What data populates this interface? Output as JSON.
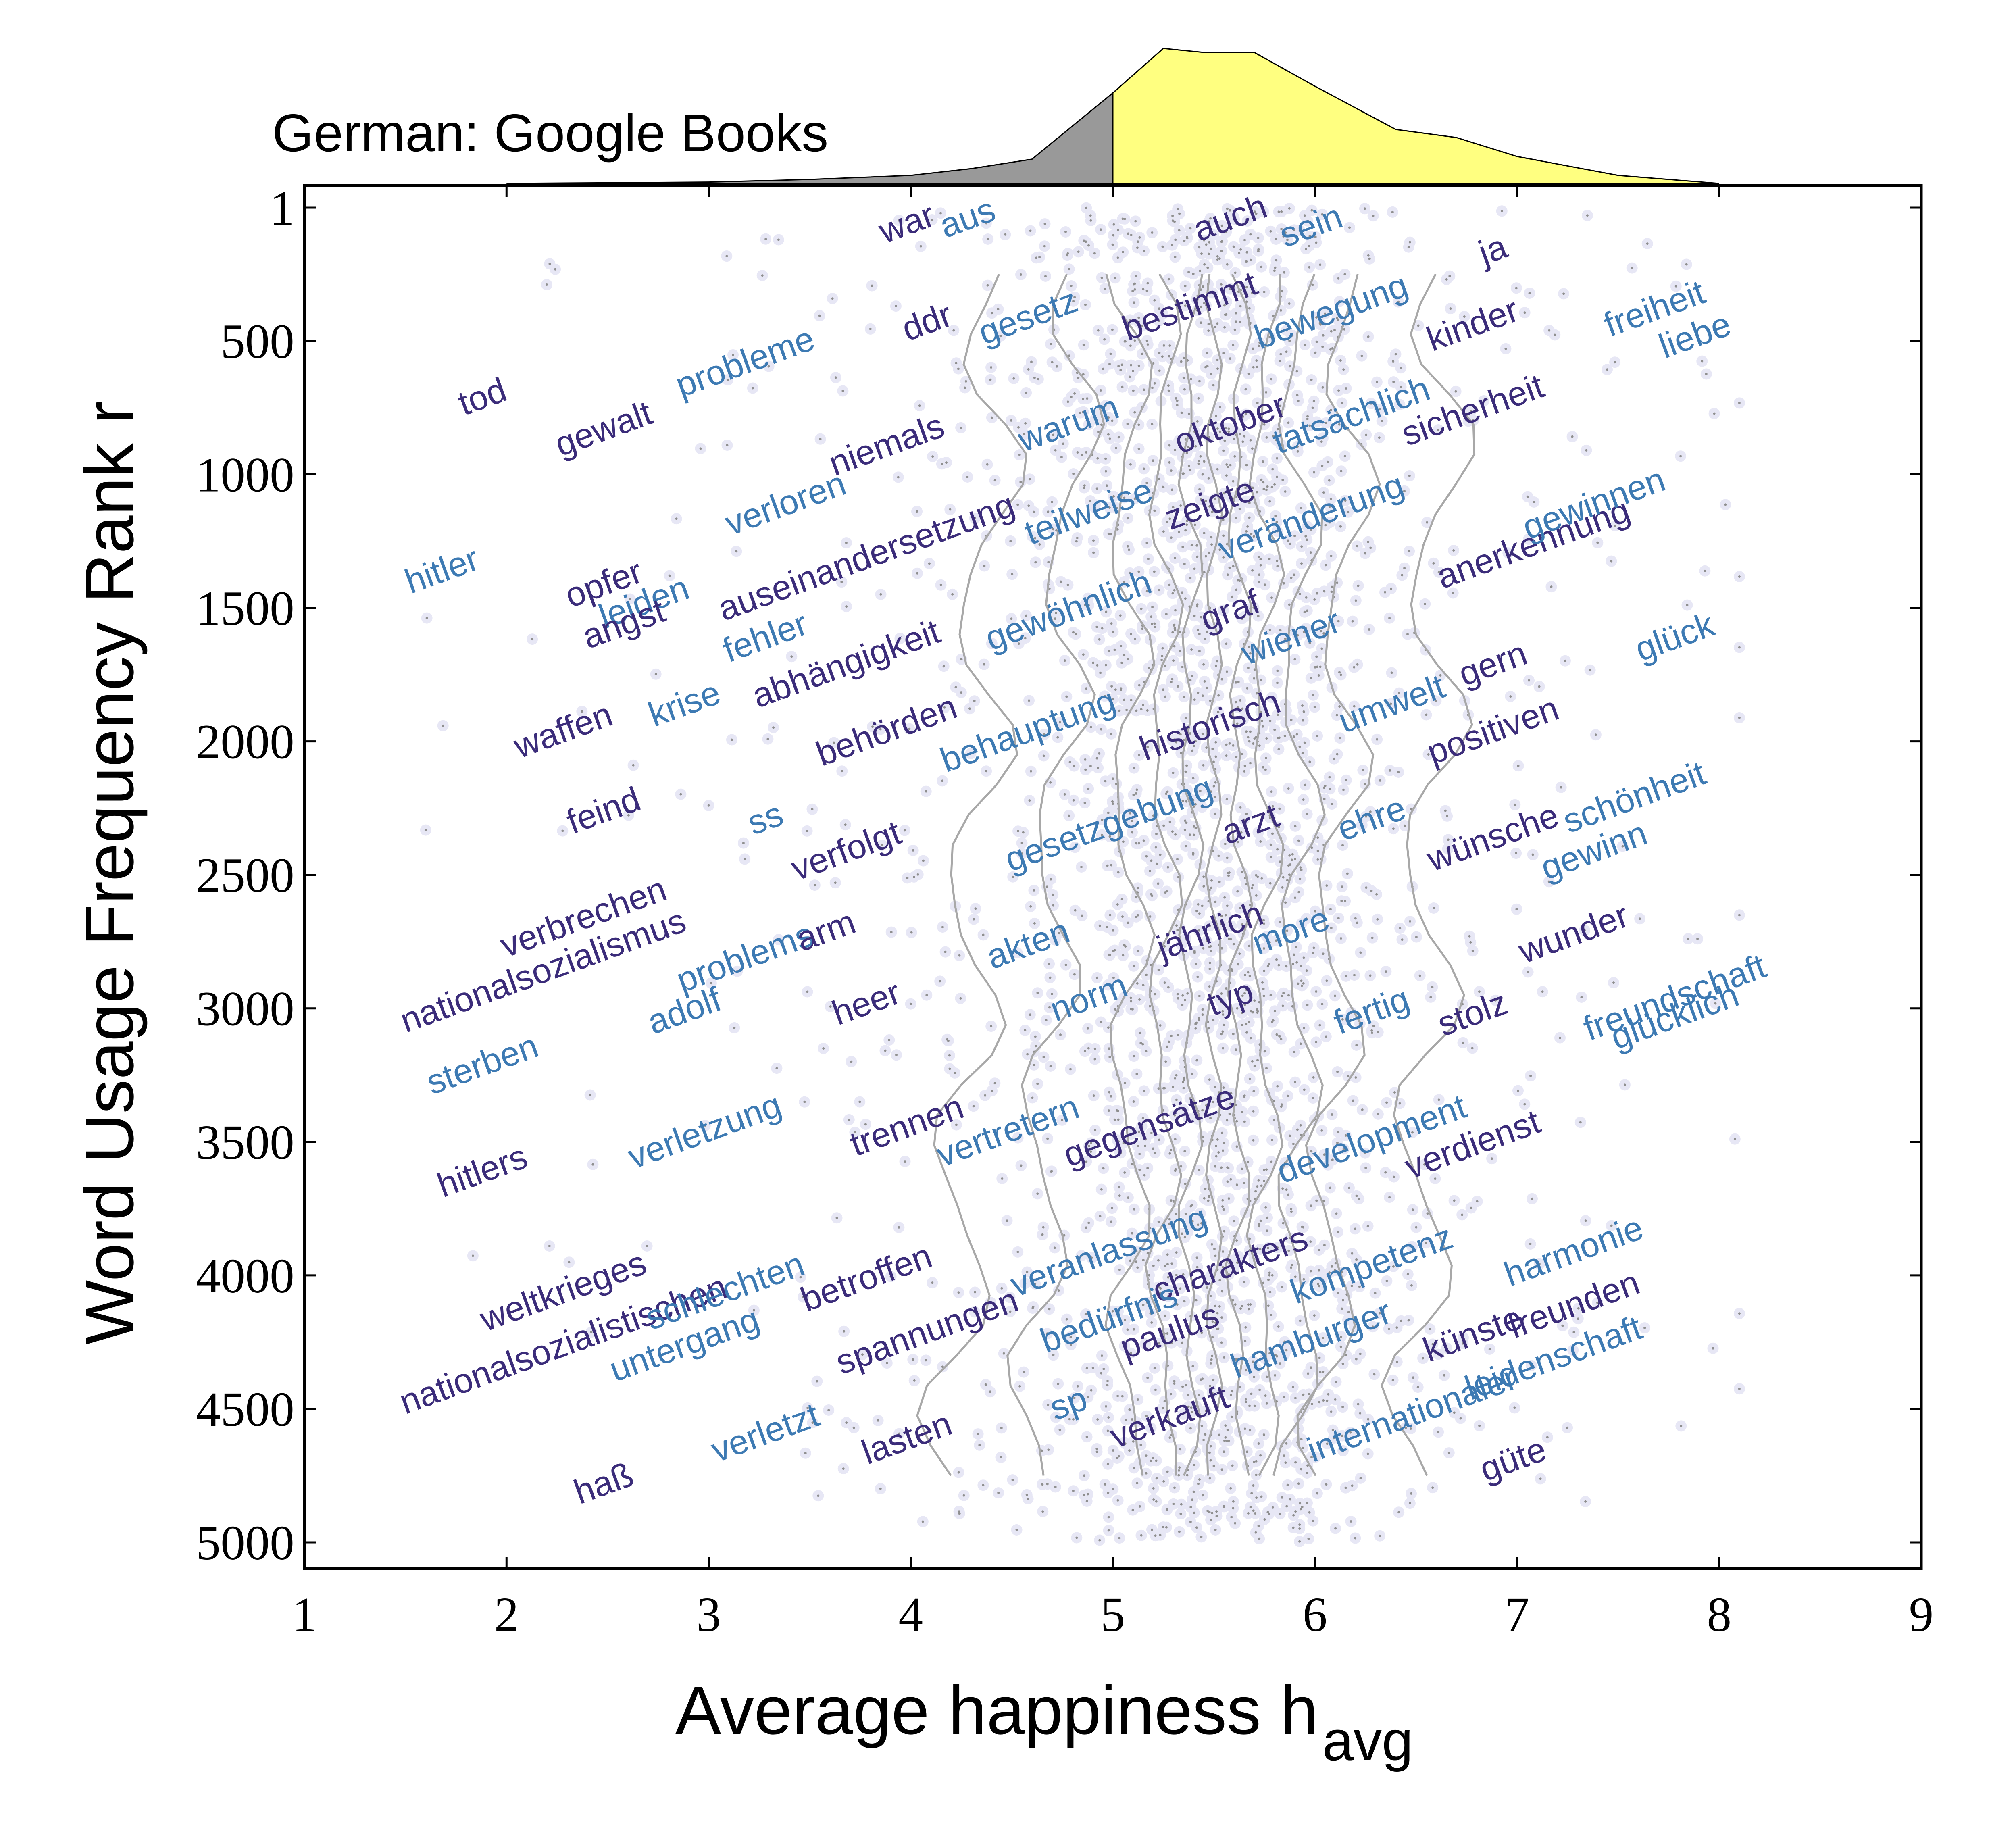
{
  "chart_data": {
    "type": "scatter",
    "title": "German: Google Books",
    "xlabel": "Average happiness h",
    "xlabel_sub": "avg",
    "ylabel": "Word Usage Frequency Rank r",
    "xlim": [
      1,
      9
    ],
    "ylim": [
      5000,
      1
    ],
    "y_axis_inverted": true,
    "xticks": [
      "1",
      "2",
      "3",
      "4",
      "5",
      "6",
      "7",
      "8",
      "9"
    ],
    "yticks": [
      "1",
      "500",
      "1000",
      "1500",
      "2000",
      "2500",
      "3000",
      "3500",
      "4000",
      "4500",
      "5000"
    ],
    "ytick_values": [
      1,
      500,
      1000,
      1500,
      2000,
      2500,
      3000,
      3500,
      4000,
      4500,
      5000
    ],
    "grid": false,
    "colors": {
      "negative_word": "#3b2c7a",
      "positive_word": "#3d7ab3",
      "point_halo": "#e7e7f5",
      "point_center": "#8f8f8f",
      "contour": "#a8a8a8",
      "hist_negative": "#999999",
      "hist_positive": "#ffff80"
    },
    "marginal_histogram": {
      "type": "area",
      "split_at": 5,
      "x": [
        2.0,
        3.0,
        3.5,
        4.0,
        4.3,
        4.6,
        5.0,
        5.25,
        5.45,
        5.7,
        6.0,
        6.4,
        6.7,
        7.0,
        7.5,
        8.0
      ],
      "density": [
        0.0,
        0.01,
        0.03,
        0.06,
        0.11,
        0.18,
        0.67,
        1.0,
        0.97,
        0.97,
        0.72,
        0.4,
        0.34,
        0.2,
        0.06,
        0.0
      ]
    },
    "words": [
      {
        "w": "tod",
        "h": 1.9,
        "r": 750,
        "pos": false
      },
      {
        "w": "gewalt",
        "h": 2.5,
        "r": 870,
        "pos": false
      },
      {
        "w": "probleme",
        "h": 3.2,
        "r": 620,
        "pos": true
      },
      {
        "w": "war",
        "h": 4.0,
        "r": 100,
        "pos": false
      },
      {
        "w": "aus",
        "h": 4.3,
        "r": 80,
        "pos": true
      },
      {
        "w": "auch",
        "h": 5.6,
        "r": 80,
        "pos": false
      },
      {
        "w": "sein",
        "h": 6.0,
        "r": 110,
        "pos": true
      },
      {
        "w": "ja",
        "h": 6.9,
        "r": 200,
        "pos": false
      },
      {
        "w": "ddr",
        "h": 4.1,
        "r": 470,
        "pos": false
      },
      {
        "w": "gesetz",
        "h": 4.6,
        "r": 450,
        "pos": true
      },
      {
        "w": "bestimmt",
        "h": 5.4,
        "r": 410,
        "pos": false
      },
      {
        "w": "bewegung",
        "h": 6.1,
        "r": 430,
        "pos": true
      },
      {
        "w": "kinder",
        "h": 6.8,
        "r": 480,
        "pos": false
      },
      {
        "w": "freiheit",
        "h": 7.7,
        "r": 420,
        "pos": true
      },
      {
        "w": "liebe",
        "h": 7.9,
        "r": 520,
        "pos": true
      },
      {
        "w": "niemals",
        "h": 3.9,
        "r": 930,
        "pos": false
      },
      {
        "w": "warum",
        "h": 4.8,
        "r": 850,
        "pos": true
      },
      {
        "w": "oktober",
        "h": 5.6,
        "r": 850,
        "pos": false
      },
      {
        "w": "tatsächlich",
        "h": 6.2,
        "r": 820,
        "pos": true
      },
      {
        "w": "sicherheit",
        "h": 6.8,
        "r": 800,
        "pos": false
      },
      {
        "w": "hitler",
        "h": 1.7,
        "r": 1400,
        "pos": true
      },
      {
        "w": "verloren",
        "h": 3.4,
        "r": 1150,
        "pos": true
      },
      {
        "w": "auseinandersetzung",
        "h": 3.8,
        "r": 1350,
        "pos": false
      },
      {
        "w": "teilweise",
        "h": 4.9,
        "r": 1180,
        "pos": true
      },
      {
        "w": "zeigte",
        "h": 5.5,
        "r": 1150,
        "pos": false
      },
      {
        "w": "veränderung",
        "h": 6.0,
        "r": 1200,
        "pos": true
      },
      {
        "w": "anerkennung",
        "h": 7.1,
        "r": 1300,
        "pos": false
      },
      {
        "w": "gewinnen",
        "h": 7.4,
        "r": 1150,
        "pos": true
      },
      {
        "w": "opfer",
        "h": 2.5,
        "r": 1450,
        "pos": false
      },
      {
        "w": "leiden",
        "h": 2.7,
        "r": 1520,
        "pos": true
      },
      {
        "w": "angst",
        "h": 2.6,
        "r": 1600,
        "pos": false
      },
      {
        "w": "fehler",
        "h": 3.3,
        "r": 1650,
        "pos": true
      },
      {
        "w": "abhängigkeit",
        "h": 3.7,
        "r": 1750,
        "pos": false
      },
      {
        "w": "gewöhnlich",
        "h": 4.8,
        "r": 1550,
        "pos": true
      },
      {
        "w": "graf",
        "h": 5.6,
        "r": 1550,
        "pos": false
      },
      {
        "w": "wiener",
        "h": 5.9,
        "r": 1650,
        "pos": true
      },
      {
        "w": "gern",
        "h": 6.9,
        "r": 1750,
        "pos": false
      },
      {
        "w": "glück",
        "h": 7.8,
        "r": 1650,
        "pos": true
      },
      {
        "w": "waffen",
        "h": 2.3,
        "r": 2000,
        "pos": false
      },
      {
        "w": "krise",
        "h": 2.9,
        "r": 1900,
        "pos": true
      },
      {
        "w": "behörden",
        "h": 3.9,
        "r": 2000,
        "pos": false
      },
      {
        "w": "behauptung",
        "h": 4.6,
        "r": 2000,
        "pos": true
      },
      {
        "w": "historisch",
        "h": 5.5,
        "r": 1980,
        "pos": false
      },
      {
        "w": "umwelt",
        "h": 6.4,
        "r": 1900,
        "pos": true
      },
      {
        "w": "positiven",
        "h": 6.9,
        "r": 2000,
        "pos": false
      },
      {
        "w": "feind",
        "h": 2.5,
        "r": 2300,
        "pos": false
      },
      {
        "w": "ss",
        "h": 3.3,
        "r": 2330,
        "pos": true
      },
      {
        "w": "verfolgt",
        "h": 3.7,
        "r": 2450,
        "pos": false
      },
      {
        "w": "gesetzgebung",
        "h": 5.0,
        "r": 2350,
        "pos": true
      },
      {
        "w": "arzt",
        "h": 5.7,
        "r": 2350,
        "pos": false
      },
      {
        "w": "ehre",
        "h": 6.3,
        "r": 2330,
        "pos": true
      },
      {
        "w": "wünsche",
        "h": 6.9,
        "r": 2400,
        "pos": false
      },
      {
        "w": "schönheit",
        "h": 7.6,
        "r": 2250,
        "pos": true
      },
      {
        "w": "gewinn",
        "h": 7.4,
        "r": 2450,
        "pos": true
      },
      {
        "w": "verbrechen",
        "h": 2.4,
        "r": 2700,
        "pos": false
      },
      {
        "w": "nationalsozialismus",
        "h": 2.2,
        "r": 2900,
        "pos": false
      },
      {
        "w": "problems",
        "h": 3.2,
        "r": 2850,
        "pos": true
      },
      {
        "w": "arm",
        "h": 3.6,
        "r": 2750,
        "pos": false
      },
      {
        "w": "akten",
        "h": 4.6,
        "r": 2800,
        "pos": true
      },
      {
        "w": "jährlich",
        "h": 5.5,
        "r": 2750,
        "pos": false
      },
      {
        "w": "more",
        "h": 5.9,
        "r": 2750,
        "pos": true
      },
      {
        "w": "wunder",
        "h": 7.3,
        "r": 2760,
        "pos": false
      },
      {
        "w": "freundschaft",
        "h": 7.8,
        "r": 3000,
        "pos": true
      },
      {
        "w": "glücklich",
        "h": 7.8,
        "r": 3070,
        "pos": true
      },
      {
        "w": "sterben",
        "h": 1.9,
        "r": 3250,
        "pos": true
      },
      {
        "w": "adolf",
        "h": 2.9,
        "r": 3050,
        "pos": true
      },
      {
        "w": "heer",
        "h": 3.8,
        "r": 3020,
        "pos": false
      },
      {
        "w": "norm",
        "h": 4.9,
        "r": 3000,
        "pos": true
      },
      {
        "w": "typ",
        "h": 5.6,
        "r": 3000,
        "pos": false
      },
      {
        "w": "fertig",
        "h": 6.3,
        "r": 3050,
        "pos": true
      },
      {
        "w": "stolz",
        "h": 6.8,
        "r": 3060,
        "pos": false
      },
      {
        "w": "hitlers",
        "h": 1.9,
        "r": 3650,
        "pos": false
      },
      {
        "w": "verletzung",
        "h": 3.0,
        "r": 3500,
        "pos": true
      },
      {
        "w": "trennen",
        "h": 4.0,
        "r": 3480,
        "pos": false
      },
      {
        "w": "vertretern",
        "h": 4.5,
        "r": 3500,
        "pos": true
      },
      {
        "w": "gegensätze",
        "h": 5.2,
        "r": 3480,
        "pos": false
      },
      {
        "w": "development",
        "h": 6.3,
        "r": 3530,
        "pos": true
      },
      {
        "w": "verdienst",
        "h": 6.8,
        "r": 3550,
        "pos": false
      },
      {
        "w": "weltkrieges",
        "h": 2.3,
        "r": 4100,
        "pos": false
      },
      {
        "w": "nationalsozialistischen",
        "h": 2.3,
        "r": 4300,
        "pos": false
      },
      {
        "w": "schlechten",
        "h": 3.1,
        "r": 4100,
        "pos": true
      },
      {
        "w": "untergang",
        "h": 2.9,
        "r": 4300,
        "pos": true
      },
      {
        "w": "betroffen",
        "h": 3.8,
        "r": 4050,
        "pos": false
      },
      {
        "w": "spannungen",
        "h": 4.1,
        "r": 4250,
        "pos": false
      },
      {
        "w": "veranlassung",
        "h": 5.0,
        "r": 3950,
        "pos": true
      },
      {
        "w": "charakters",
        "h": 5.6,
        "r": 4000,
        "pos": false
      },
      {
        "w": "bedürfnis",
        "h": 5.0,
        "r": 4200,
        "pos": true
      },
      {
        "w": "paulus",
        "h": 5.3,
        "r": 4250,
        "pos": false
      },
      {
        "w": "kompetenz",
        "h": 6.3,
        "r": 4000,
        "pos": true
      },
      {
        "w": "harmonie",
        "h": 7.3,
        "r": 3950,
        "pos": true
      },
      {
        "w": "hamburger",
        "h": 6.0,
        "r": 4280,
        "pos": true
      },
      {
        "w": "freunden",
        "h": 7.3,
        "r": 4150,
        "pos": false
      },
      {
        "w": "künste",
        "h": 6.8,
        "r": 4260,
        "pos": false
      },
      {
        "w": "haß",
        "h": 2.5,
        "r": 4820,
        "pos": false
      },
      {
        "w": "verletzt",
        "h": 3.3,
        "r": 4630,
        "pos": true
      },
      {
        "w": "lasten",
        "h": 4.0,
        "r": 4650,
        "pos": false
      },
      {
        "w": "sp",
        "h": 4.8,
        "r": 4520,
        "pos": true
      },
      {
        "w": "verkauft",
        "h": 5.3,
        "r": 4570,
        "pos": false
      },
      {
        "w": "internationaler",
        "h": 6.5,
        "r": 4560,
        "pos": true
      },
      {
        "w": "leidenschaft",
        "h": 7.2,
        "r": 4350,
        "pos": true
      },
      {
        "w": "güte",
        "h": 7.0,
        "r": 4730,
        "pos": false
      }
    ]
  }
}
